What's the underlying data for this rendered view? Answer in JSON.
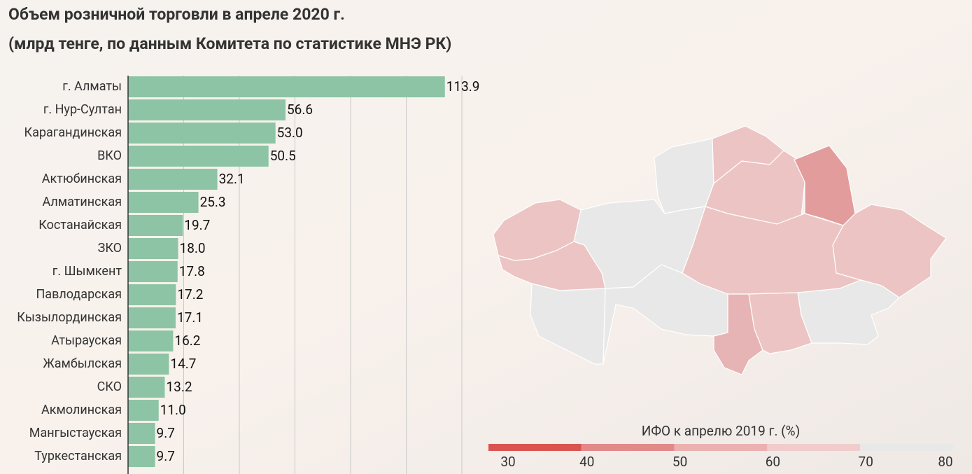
{
  "chart_data": {
    "type": "bar",
    "orientation": "horizontal",
    "title": "Объем розничной торговли в апреле 2020 г.",
    "subtitle": "(млрд тенге, по данным Комитета по статистике МНЭ РК)",
    "categories": [
      "г. Алматы",
      "г. Нур-Султан",
      "Карагандинская",
      "ВКО",
      "Актюбинская",
      "Алматинская",
      "Костанайская",
      "ЗКО",
      "г. Шымкент",
      "Павлодарская",
      "Кызылординская",
      "Атырауская",
      "Жамбылская",
      "СКО",
      "Акмолинская",
      "Мангыстауская",
      "Туркестанская"
    ],
    "values": [
      113.9,
      56.6,
      53.0,
      50.5,
      32.1,
      25.3,
      19.7,
      18.0,
      17.8,
      17.2,
      17.1,
      16.2,
      14.7,
      13.2,
      11.0,
      9.7,
      9.7
    ],
    "value_labels": [
      "113.9",
      "56.6",
      "53.0",
      "50.5",
      "32.1",
      "25.3",
      "19.7",
      "18.0",
      "17.8",
      "17.2",
      "17.1",
      "16.2",
      "14.7",
      "13.2",
      "11.0",
      "9.7",
      "9.7"
    ],
    "color": "#8dc4a6",
    "xlim": [
      0,
      120
    ],
    "xticks": [
      0,
      20,
      40,
      60,
      80,
      100,
      120
    ],
    "grid": true,
    "legend": {
      "title": "ИФО к апрелю 2019 г. (%)",
      "ticks": [
        30,
        40,
        50,
        60,
        70,
        80
      ],
      "colors": [
        "#d9534f",
        "#e28a8a",
        "#ebb0b0",
        "#f1cccc",
        "#e8e8e8"
      ]
    }
  }
}
